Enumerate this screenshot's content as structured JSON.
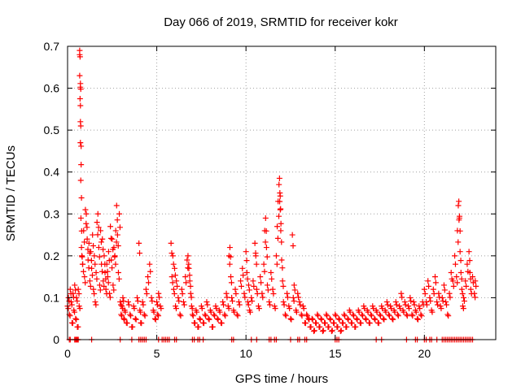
{
  "chart_data": {
    "type": "scatter",
    "title": "Day 066 of 2019, SRMTID for receiver kokr",
    "xlabel": "GPS time / hours",
    "ylabel": "SRMTID / TECUs",
    "xlim": [
      0,
      24
    ],
    "ylim": [
      0,
      0.7
    ],
    "xticks": [
      0,
      5,
      10,
      15,
      20
    ],
    "yticks": [
      0,
      0.1,
      0.2,
      0.3,
      0.4,
      0.5,
      0.6,
      0.7
    ],
    "grid": true,
    "marker": "+",
    "color": "#ff0000",
    "series": [
      {
        "name": "SRMTID",
        "points": [
          [
            0.0,
            0.08
          ],
          [
            0.05,
            0.1
          ],
          [
            0.1,
            0.06
          ],
          [
            0.15,
            0.12
          ],
          [
            0.2,
            0.09
          ],
          [
            0.25,
            0.04
          ],
          [
            0.3,
            0.11
          ],
          [
            0.35,
            0.07
          ],
          [
            0.4,
            0.13
          ],
          [
            0.45,
            0.05
          ],
          [
            0.5,
            0.1
          ],
          [
            0.55,
            0.03
          ],
          [
            0.6,
            0.12
          ],
          [
            0.65,
            0.08
          ],
          [
            0.68,
            0.69
          ],
          [
            0.68,
            0.68
          ],
          [
            0.7,
            0.675
          ],
          [
            0.68,
            0.63
          ],
          [
            0.7,
            0.575
          ],
          [
            0.72,
            0.52
          ],
          [
            0.72,
            0.47
          ],
          [
            0.74,
            0.38
          ],
          [
            0.75,
            0.29
          ],
          [
            0.78,
            0.22
          ],
          [
            0.8,
            0.2
          ],
          [
            0.85,
            0.18
          ],
          [
            0.9,
            0.26
          ],
          [
            0.95,
            0.15
          ],
          [
            1.0,
            0.31
          ],
          [
            1.05,
            0.3
          ],
          [
            1.1,
            0.24
          ],
          [
            1.15,
            0.19
          ],
          [
            1.2,
            0.23
          ],
          [
            1.25,
            0.14
          ],
          [
            1.3,
            0.21
          ],
          [
            1.35,
            0.17
          ],
          [
            1.4,
            0.25
          ],
          [
            1.45,
            0.12
          ],
          [
            1.5,
            0.2
          ],
          [
            1.55,
            0.09
          ],
          [
            1.6,
            0.16
          ],
          [
            1.65,
            0.28
          ],
          [
            1.7,
            0.3
          ],
          [
            1.75,
            0.22
          ],
          [
            1.8,
            0.13
          ],
          [
            1.85,
            0.26
          ],
          [
            1.9,
            0.18
          ],
          [
            1.95,
            0.24
          ],
          [
            2.0,
            0.14
          ],
          [
            2.05,
            0.2
          ],
          [
            2.1,
            0.16
          ],
          [
            2.15,
            0.12
          ],
          [
            2.2,
            0.18
          ],
          [
            2.25,
            0.15
          ],
          [
            2.3,
            0.21
          ],
          [
            2.35,
            0.11
          ],
          [
            2.4,
            0.27
          ],
          [
            2.45,
            0.19
          ],
          [
            2.5,
            0.24
          ],
          [
            2.55,
            0.13
          ],
          [
            2.6,
            0.22
          ],
          [
            2.65,
            0.2
          ],
          [
            2.7,
            0.26
          ],
          [
            2.75,
            0.32
          ],
          [
            2.8,
            0.25
          ],
          [
            2.85,
            0.16
          ],
          [
            2.9,
            0.3
          ],
          [
            2.95,
            0.09
          ],
          [
            3.0,
            0.06
          ],
          [
            3.05,
            0.08
          ],
          [
            3.1,
            0.1
          ],
          [
            3.15,
            0.05
          ],
          [
            3.2,
            0.07
          ],
          [
            3.3,
            0.04
          ],
          [
            3.4,
            0.09
          ],
          [
            3.5,
            0.06
          ],
          [
            3.6,
            0.03
          ],
          [
            3.7,
            0.08
          ],
          [
            3.8,
            0.05
          ],
          [
            3.9,
            0.1
          ],
          [
            4.0,
            0.23
          ],
          [
            4.05,
            0.07
          ],
          [
            4.1,
            0.04
          ],
          [
            4.2,
            0.09
          ],
          [
            4.3,
            0.06
          ],
          [
            4.4,
            0.12
          ],
          [
            4.5,
            0.15
          ],
          [
            4.6,
            0.18
          ],
          [
            4.7,
            0.1
          ],
          [
            4.8,
            0.07
          ],
          [
            4.9,
            0.05
          ],
          [
            5.0,
            0.09
          ],
          [
            5.05,
            0.06
          ],
          [
            5.1,
            0.11
          ],
          [
            5.2,
            0.08
          ],
          [
            5.8,
            0.23
          ],
          [
            5.85,
            0.15
          ],
          [
            5.9,
            0.2
          ],
          [
            5.95,
            0.12
          ],
          [
            6.0,
            0.17
          ],
          [
            6.05,
            0.08
          ],
          [
            6.1,
            0.14
          ],
          [
            6.2,
            0.1
          ],
          [
            6.3,
            0.06
          ],
          [
            6.4,
            0.12
          ],
          [
            6.5,
            0.09
          ],
          [
            6.6,
            0.15
          ],
          [
            6.7,
            0.19
          ],
          [
            6.75,
            0.2
          ],
          [
            6.8,
            0.17
          ],
          [
            6.85,
            0.14
          ],
          [
            6.9,
            0.11
          ],
          [
            6.95,
            0.08
          ],
          [
            7.0,
            0.06
          ],
          [
            7.1,
            0.04
          ],
          [
            7.2,
            0.07
          ],
          [
            7.3,
            0.03
          ],
          [
            7.4,
            0.05
          ],
          [
            7.5,
            0.08
          ],
          [
            7.6,
            0.04
          ],
          [
            7.7,
            0.06
          ],
          [
            7.8,
            0.09
          ],
          [
            7.9,
            0.05
          ],
          [
            8.0,
            0.07
          ],
          [
            8.1,
            0.03
          ],
          [
            8.2,
            0.06
          ],
          [
            8.3,
            0.08
          ],
          [
            8.4,
            0.05
          ],
          [
            8.5,
            0.07
          ],
          [
            8.6,
            0.04
          ],
          [
            8.7,
            0.09
          ],
          [
            8.8,
            0.06
          ],
          [
            8.9,
            0.11
          ],
          [
            9.0,
            0.08
          ],
          [
            9.05,
            0.2
          ],
          [
            9.1,
            0.22
          ],
          [
            9.15,
            0.15
          ],
          [
            9.2,
            0.1
          ],
          [
            9.3,
            0.07
          ],
          [
            9.4,
            0.12
          ],
          [
            9.5,
            0.06
          ],
          [
            9.6,
            0.09
          ],
          [
            9.7,
            0.14
          ],
          [
            9.8,
            0.17
          ],
          [
            9.9,
            0.11
          ],
          [
            10.0,
            0.21
          ],
          [
            10.05,
            0.16
          ],
          [
            10.1,
            0.09
          ],
          [
            10.15,
            0.13
          ],
          [
            10.2,
            0.07
          ],
          [
            10.3,
            0.1
          ],
          [
            10.4,
            0.14
          ],
          [
            10.5,
            0.23
          ],
          [
            10.55,
            0.2
          ],
          [
            10.6,
            0.12
          ],
          [
            10.7,
            0.08
          ],
          [
            10.8,
            0.15
          ],
          [
            10.9,
            0.11
          ],
          [
            11.0,
            0.18
          ],
          [
            11.05,
            0.26
          ],
          [
            11.1,
            0.29
          ],
          [
            11.15,
            0.22
          ],
          [
            11.2,
            0.13
          ],
          [
            11.3,
            0.09
          ],
          [
            11.4,
            0.16
          ],
          [
            11.5,
            0.12
          ],
          [
            11.6,
            0.08
          ],
          [
            11.7,
            0.2
          ],
          [
            11.75,
            0.27
          ],
          [
            11.8,
            0.33
          ],
          [
            11.85,
            0.37
          ],
          [
            11.88,
            0.385
          ],
          [
            11.9,
            0.35
          ],
          [
            11.92,
            0.31
          ],
          [
            11.95,
            0.26
          ],
          [
            12.0,
            0.19
          ],
          [
            12.05,
            0.14
          ],
          [
            12.1,
            0.09
          ],
          [
            12.2,
            0.06
          ],
          [
            12.3,
            0.11
          ],
          [
            12.4,
            0.08
          ],
          [
            12.5,
            0.05
          ],
          [
            12.6,
            0.25
          ],
          [
            12.65,
            0.1
          ],
          [
            12.7,
            0.13
          ],
          [
            12.8,
            0.07
          ],
          [
            12.9,
            0.11
          ],
          [
            13.0,
            0.09
          ],
          [
            13.1,
            0.06
          ],
          [
            13.2,
            0.08
          ],
          [
            13.3,
            0.04
          ],
          [
            13.4,
            0.06
          ],
          [
            13.5,
            0.05
          ],
          [
            13.6,
            0.03
          ],
          [
            13.7,
            0.05
          ],
          [
            13.8,
            0.02
          ],
          [
            13.9,
            0.04
          ],
          [
            14.0,
            0.06
          ],
          [
            14.1,
            0.03
          ],
          [
            14.2,
            0.05
          ],
          [
            14.3,
            0.02
          ],
          [
            14.4,
            0.04
          ],
          [
            14.5,
            0.06
          ],
          [
            14.6,
            0.03
          ],
          [
            14.7,
            0.05
          ],
          [
            14.8,
            0.02
          ],
          [
            14.9,
            0.04
          ],
          [
            15.0,
            0.06
          ],
          [
            15.1,
            0.03
          ],
          [
            15.2,
            0.05
          ],
          [
            15.3,
            0.02
          ],
          [
            15.4,
            0.04
          ],
          [
            15.5,
            0.06
          ],
          [
            15.6,
            0.03
          ],
          [
            15.7,
            0.05
          ],
          [
            15.8,
            0.07
          ],
          [
            15.9,
            0.04
          ],
          [
            16.0,
            0.06
          ],
          [
            16.1,
            0.03
          ],
          [
            16.2,
            0.05
          ],
          [
            16.3,
            0.07
          ],
          [
            16.4,
            0.04
          ],
          [
            16.5,
            0.06
          ],
          [
            16.6,
            0.08
          ],
          [
            16.7,
            0.05
          ],
          [
            16.8,
            0.07
          ],
          [
            16.9,
            0.04
          ],
          [
            17.0,
            0.06
          ],
          [
            17.1,
            0.08
          ],
          [
            17.2,
            0.05
          ],
          [
            17.3,
            0.07
          ],
          [
            17.4,
            0.04
          ],
          [
            17.5,
            0.06
          ],
          [
            17.6,
            0.08
          ],
          [
            17.7,
            0.05
          ],
          [
            17.8,
            0.07
          ],
          [
            17.9,
            0.09
          ],
          [
            18.0,
            0.06
          ],
          [
            18.1,
            0.08
          ],
          [
            18.2,
            0.05
          ],
          [
            18.3,
            0.07
          ],
          [
            18.4,
            0.09
          ],
          [
            18.5,
            0.06
          ],
          [
            18.6,
            0.08
          ],
          [
            18.7,
            0.11
          ],
          [
            18.8,
            0.07
          ],
          [
            18.9,
            0.09
          ],
          [
            19.0,
            0.06
          ],
          [
            19.1,
            0.08
          ],
          [
            19.2,
            0.1
          ],
          [
            19.3,
            0.06
          ],
          [
            19.4,
            0.09
          ],
          [
            19.5,
            0.07
          ],
          [
            19.6,
            0.05
          ],
          [
            19.7,
            0.08
          ],
          [
            19.8,
            0.06
          ],
          [
            19.9,
            0.09
          ],
          [
            20.0,
            0.12
          ],
          [
            20.1,
            0.09
          ],
          [
            20.2,
            0.14
          ],
          [
            20.3,
            0.1
          ],
          [
            20.4,
            0.07
          ],
          [
            20.5,
            0.12
          ],
          [
            20.6,
            0.15
          ],
          [
            20.7,
            0.09
          ],
          [
            20.8,
            0.11
          ],
          [
            20.9,
            0.08
          ],
          [
            21.0,
            0.1
          ],
          [
            21.1,
            0.13
          ],
          [
            21.2,
            0.09
          ],
          [
            21.3,
            0.06
          ],
          [
            21.4,
            0.11
          ],
          [
            21.5,
            0.16
          ],
          [
            21.6,
            0.14
          ],
          [
            21.7,
            0.2
          ],
          [
            21.8,
            0.15
          ],
          [
            21.85,
            0.26
          ],
          [
            21.9,
            0.32
          ],
          [
            21.93,
            0.33
          ],
          [
            21.96,
            0.29
          ],
          [
            22.0,
            0.21
          ],
          [
            22.05,
            0.16
          ],
          [
            22.1,
            0.12
          ],
          [
            22.15,
            0.08
          ],
          [
            22.2,
            0.1
          ],
          [
            22.3,
            0.14
          ],
          [
            22.4,
            0.18
          ],
          [
            22.5,
            0.21
          ],
          [
            22.55,
            0.16
          ],
          [
            22.6,
            0.12
          ],
          [
            22.7,
            0.15
          ],
          [
            22.8,
            0.11
          ],
          [
            22.85,
            0.14
          ]
        ]
      }
    ],
    "zero_points_x": [
      0.1,
      0.15,
      0.4,
      0.45,
      0.5,
      0.55,
      0.6,
      1.35,
      2.95,
      3.6,
      4.0,
      4.1,
      4.2,
      4.3,
      4.4,
      5.1,
      5.3,
      5.4,
      5.5,
      5.6,
      5.7,
      6.0,
      6.1,
      7.0,
      7.1,
      7.3,
      7.4,
      7.6,
      9.2,
      9.3,
      10.3,
      10.6,
      11.3,
      11.4,
      11.6,
      11.7,
      12.5,
      12.9,
      13.0,
      13.3,
      13.4,
      15.0,
      15.1,
      15.2,
      17.3,
      17.6,
      19.0,
      19.5,
      19.6,
      20.0,
      20.1,
      20.3,
      20.4,
      20.7,
      21.0,
      21.1,
      21.2,
      21.3,
      21.4,
      21.5,
      21.6,
      21.7,
      21.8,
      21.9,
      22.0,
      22.1,
      22.2,
      22.3,
      22.4,
      22.5,
      22.6,
      22.7
    ]
  }
}
